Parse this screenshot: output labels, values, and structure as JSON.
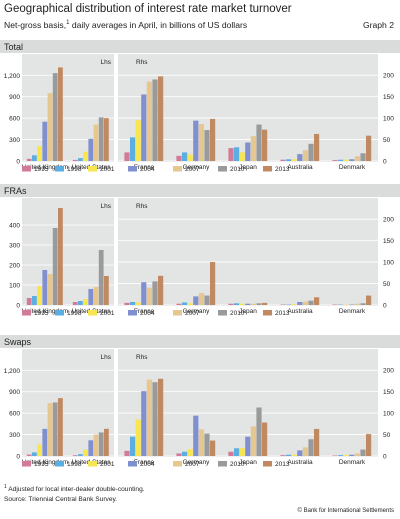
{
  "title": "Geographical distribution of interest rate market turnover",
  "subtitle": "Net-gross basis,",
  "subtitle_note_mark": "1",
  "subtitle_rest": " daily averages in April, in billions of US dollars",
  "graph_label": "Graph 2",
  "footnote_mark": "1",
  "footnote": "  Adjusted for local inter-dealer double-counting.",
  "source": "Source: Triennial Central Bank Survey.",
  "copyright": "© Bank for International Settlements",
  "colors": {
    "1995": "#d27a97",
    "1998": "#5aaee2",
    "2001": "#f7e552",
    "2004": "#7f8fcf",
    "2007": "#e6c78f",
    "2010": "#9a9a9a",
    "2013": "#bf8a62",
    "panel_bg": "#e3e4e4",
    "grid": "#ffffff",
    "header_bg": "#dadcdc"
  },
  "chart_data": [
    {
      "type": "bar",
      "title": "Total",
      "years": [
        "1995",
        "1998",
        "2001",
        "2004",
        "2007",
        "2010",
        "2013"
      ],
      "lhs": {
        "label": "Lhs",
        "ylim": [
          0,
          1400
        ],
        "ticks": [
          "0",
          "300",
          "600",
          "900",
          "1,200"
        ],
        "tick_values": [
          0,
          300,
          600,
          900,
          1200
        ],
        "categories": [
          "United Kingdom",
          "United States"
        ],
        "values": [
          [
            30,
            80,
            210,
            550,
            950,
            1230,
            1310
          ],
          [
            15,
            40,
            130,
            310,
            510,
            610,
            600
          ]
        ]
      },
      "rhs": {
        "label": "Rhs",
        "ylim": [
          0,
          233
        ],
        "ticks": [
          "0",
          "50",
          "100",
          "150",
          "200"
        ],
        "tick_values": [
          0,
          50,
          100,
          150,
          200
        ],
        "categories": [
          "France",
          "Germany",
          "Japan",
          "Australia",
          "Denmark"
        ],
        "values": [
          [
            20,
            55,
            95,
            155,
            185,
            190,
            197
          ],
          [
            12,
            20,
            15,
            94,
            86,
            72,
            98
          ],
          [
            30,
            32,
            20,
            43,
            58,
            85,
            73
          ],
          [
            3,
            4,
            4,
            16,
            25,
            40,
            63
          ],
          [
            2,
            3,
            3,
            4,
            11,
            18,
            59
          ]
        ]
      },
      "legend": {
        "left": [
          "1995",
          "1998",
          "2001"
        ],
        "right": [
          "2004",
          "2007",
          "2010",
          "2013"
        ]
      }
    },
    {
      "type": "bar",
      "title": "FRAs",
      "years": [
        "1995",
        "1998",
        "2001",
        "2004",
        "2007",
        "2010",
        "2013"
      ],
      "lhs": {
        "label": "Lhs",
        "ylim": [
          0,
          500
        ],
        "ticks": [
          "0",
          "100",
          "200",
          "300",
          "400"
        ],
        "tick_values": [
          0,
          100,
          200,
          300,
          400
        ],
        "categories": [
          "United Kingdom",
          "United States"
        ],
        "values": [
          [
            35,
            45,
            95,
            175,
            155,
            385,
            485
          ],
          [
            15,
            20,
            30,
            80,
            90,
            275,
            145
          ]
        ]
      },
      "rhs": {
        "label": "Rhs",
        "ylim": [
          0,
          233
        ],
        "ticks": [
          "0",
          "50",
          "100",
          "150",
          "200"
        ],
        "tick_values": [
          0,
          50,
          100,
          150,
          200
        ],
        "categories": [
          "France",
          "Germany",
          "Japan",
          "Australia",
          "Denmark"
        ],
        "values": [
          [
            5,
            7,
            6,
            53,
            40,
            55,
            68
          ],
          [
            3,
            6,
            4,
            20,
            28,
            22,
            100
          ],
          [
            3,
            4,
            3,
            3,
            3,
            4,
            5
          ],
          [
            1,
            1,
            2,
            7,
            8,
            10,
            18
          ],
          [
            1,
            1,
            1,
            1,
            3,
            4,
            22
          ]
        ]
      },
      "legend": {
        "left": [
          "1995",
          "1998",
          "2001"
        ],
        "right": [
          "2004",
          "2007",
          "2010",
          "2013"
        ]
      }
    },
    {
      "type": "bar",
      "title": "Swaps",
      "years": [
        "1995",
        "1998",
        "2001",
        "2004",
        "2007",
        "2010",
        "2013"
      ],
      "lhs": {
        "label": "Lhs",
        "ylim": [
          0,
          1400
        ],
        "ticks": [
          "0",
          "300",
          "600",
          "900",
          "1,200"
        ],
        "tick_values": [
          0,
          300,
          600,
          900,
          1200
        ],
        "categories": [
          "United Kingdom",
          "United States"
        ],
        "values": [
          [
            20,
            50,
            160,
            380,
            740,
            750,
            810
          ],
          [
            10,
            25,
            90,
            220,
            300,
            330,
            380
          ]
        ]
      },
      "rhs": {
        "label": "Rhs",
        "ylim": [
          0,
          233
        ],
        "ticks": [
          "0",
          "50",
          "100",
          "150",
          "200"
        ],
        "tick_values": [
          0,
          50,
          100,
          150,
          200
        ],
        "categories": [
          "France",
          "Germany",
          "Japan",
          "Australia",
          "Denmark"
        ],
        "values": [
          [
            12,
            45,
            85,
            151,
            178,
            172,
            180
          ],
          [
            6,
            10,
            16,
            94,
            62,
            52,
            36
          ],
          [
            10,
            18,
            18,
            45,
            69,
            113,
            78
          ],
          [
            2,
            3,
            3,
            13,
            20,
            39,
            63
          ],
          [
            1,
            2,
            2,
            3,
            6,
            15,
            51
          ]
        ]
      },
      "legend": {
        "left": [
          "1995",
          "1998",
          "2001"
        ],
        "right": [
          "2004",
          "2007",
          "2010",
          "2013"
        ]
      }
    }
  ]
}
